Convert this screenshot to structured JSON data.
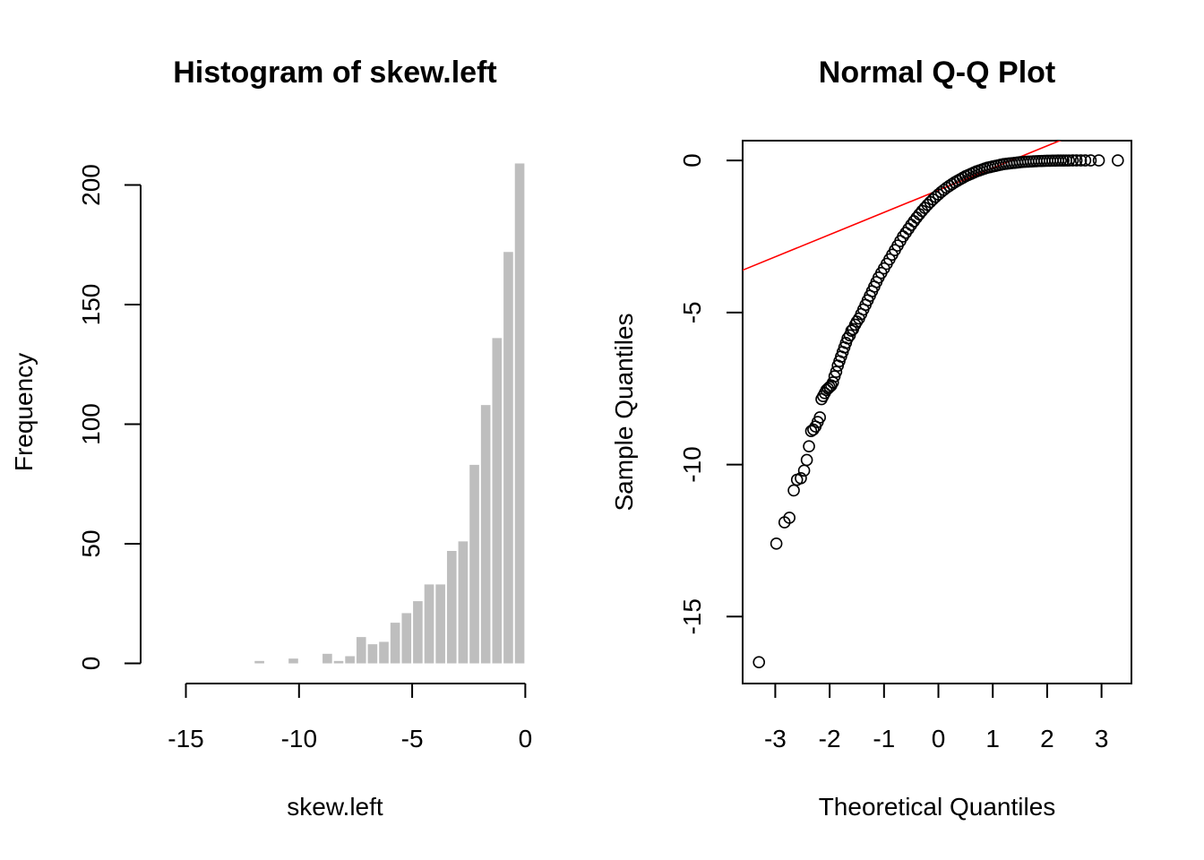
{
  "chart_data": [
    {
      "type": "bar",
      "title": "Histogram of skew.left",
      "xlabel": "skew.left",
      "ylabel": "Frequency",
      "xlim": [
        -17,
        0.5
      ],
      "ylim": [
        0,
        210
      ],
      "x_ticks": [
        -15,
        -10,
        -5,
        0
      ],
      "y_ticks": [
        0,
        50,
        100,
        150,
        200
      ],
      "bar_color": "#bebebe",
      "bin_width": 0.5,
      "bins": [
        {
          "x0": -12.0,
          "x1": -11.5,
          "value": 1
        },
        {
          "x0": -10.5,
          "x1": -10.0,
          "value": 2
        },
        {
          "x0": -9.0,
          "x1": -8.5,
          "value": 4
        },
        {
          "x0": -8.5,
          "x1": -8.0,
          "value": 1
        },
        {
          "x0": -8.0,
          "x1": -7.5,
          "value": 3
        },
        {
          "x0": -7.5,
          "x1": -7.0,
          "value": 11
        },
        {
          "x0": -7.0,
          "x1": -6.5,
          "value": 8
        },
        {
          "x0": -6.5,
          "x1": -6.0,
          "value": 9
        },
        {
          "x0": -6.0,
          "x1": -5.5,
          "value": 17
        },
        {
          "x0": -5.5,
          "x1": -5.0,
          "value": 21
        },
        {
          "x0": -5.0,
          "x1": -4.5,
          "value": 26
        },
        {
          "x0": -4.5,
          "x1": -4.0,
          "value": 33
        },
        {
          "x0": -4.0,
          "x1": -3.5,
          "value": 33
        },
        {
          "x0": -3.5,
          "x1": -3.0,
          "value": 47
        },
        {
          "x0": -3.0,
          "x1": -2.5,
          "value": 51
        },
        {
          "x0": -2.5,
          "x1": -2.0,
          "value": 83
        },
        {
          "x0": -2.0,
          "x1": -1.5,
          "value": 108
        },
        {
          "x0": -1.5,
          "x1": -1.0,
          "value": 136
        },
        {
          "x0": -1.0,
          "x1": -0.5,
          "value": 172
        },
        {
          "x0": -0.5,
          "x1": 0.0,
          "value": 209
        }
      ]
    },
    {
      "type": "scatter",
      "title": "Normal Q-Q Plot",
      "xlabel": "Theoretical Quantiles",
      "ylabel": "Sample Quantiles",
      "xlim": [
        -3.6,
        3.55
      ],
      "ylim": [
        -17.2,
        0.65
      ],
      "x_ticks": [
        -3,
        -2,
        -1,
        0,
        1,
        2,
        3
      ],
      "y_ticks": [
        0,
        -5,
        -10,
        -15
      ],
      "point_color": "#000000",
      "line_color": "#ff0000",
      "reference_line": {
        "intercept": -0.98,
        "slope": 0.73
      },
      "points": [
        [
          -3.3,
          -16.5
        ],
        [
          -2.98,
          -12.6
        ],
        [
          -2.83,
          -11.9
        ],
        [
          -2.74,
          -11.75
        ],
        [
          -2.66,
          -10.85
        ],
        [
          -2.6,
          -10.5
        ],
        [
          -2.53,
          -10.45
        ],
        [
          -2.47,
          -10.2
        ],
        [
          -2.42,
          -9.85
        ],
        [
          -2.38,
          -9.4
        ],
        [
          -2.34,
          -8.9
        ],
        [
          -2.3,
          -8.85
        ],
        [
          -2.26,
          -8.75
        ],
        [
          -2.22,
          -8.6
        ],
        [
          -2.18,
          -8.45
        ],
        [
          -2.15,
          -7.85
        ],
        [
          -2.12,
          -7.75
        ],
        [
          -2.09,
          -7.65
        ],
        [
          -2.06,
          -7.55
        ],
        [
          -2.03,
          -7.5
        ],
        [
          -2.0,
          -7.45
        ],
        [
          -1.97,
          -7.4
        ],
        [
          -1.94,
          -7.3
        ],
        [
          -1.91,
          -7.1
        ],
        [
          -1.88,
          -6.95
        ],
        [
          -1.85,
          -6.75
        ],
        [
          -1.82,
          -6.6
        ],
        [
          -1.79,
          -6.45
        ],
        [
          -1.76,
          -6.3
        ],
        [
          -1.73,
          -6.15
        ],
        [
          -1.7,
          -6.0
        ],
        [
          -1.67,
          -5.85
        ],
        [
          -1.63,
          -5.75
        ],
        [
          -1.6,
          -5.6
        ],
        [
          -1.57,
          -5.55
        ],
        [
          -1.53,
          -5.4
        ],
        [
          -1.5,
          -5.3
        ],
        [
          -1.46,
          -5.2
        ],
        [
          -1.42,
          -5.05
        ],
        [
          -1.38,
          -4.9
        ],
        [
          -1.34,
          -4.75
        ],
        [
          -1.3,
          -4.6
        ],
        [
          -1.26,
          -4.45
        ],
        [
          -1.22,
          -4.3
        ],
        [
          -1.18,
          -4.15
        ],
        [
          -1.14,
          -4.0
        ],
        [
          -1.1,
          -3.85
        ],
        [
          -1.05,
          -3.7
        ],
        [
          -1.0,
          -3.55
        ],
        [
          -0.95,
          -3.4
        ],
        [
          -0.9,
          -3.25
        ],
        [
          -0.85,
          -3.1
        ],
        [
          -0.8,
          -2.95
        ],
        [
          -0.75,
          -2.8
        ],
        [
          -0.7,
          -2.65
        ],
        [
          -0.65,
          -2.5
        ],
        [
          -0.6,
          -2.38
        ],
        [
          -0.55,
          -2.25
        ],
        [
          -0.5,
          -2.12
        ],
        [
          -0.45,
          -2.0
        ],
        [
          -0.4,
          -1.88
        ],
        [
          -0.35,
          -1.77
        ],
        [
          -0.3,
          -1.66
        ],
        [
          -0.25,
          -1.56
        ],
        [
          -0.2,
          -1.46
        ],
        [
          -0.15,
          -1.37
        ],
        [
          -0.1,
          -1.28
        ],
        [
          -0.05,
          -1.2
        ],
        [
          0.0,
          -1.12
        ],
        [
          0.05,
          -1.04
        ],
        [
          0.1,
          -0.97
        ],
        [
          0.15,
          -0.9
        ],
        [
          0.2,
          -0.84
        ],
        [
          0.25,
          -0.78
        ],
        [
          0.3,
          -0.72
        ],
        [
          0.35,
          -0.67
        ],
        [
          0.4,
          -0.62
        ],
        [
          0.45,
          -0.57
        ],
        [
          0.5,
          -0.52
        ],
        [
          0.55,
          -0.48
        ],
        [
          0.6,
          -0.44
        ],
        [
          0.65,
          -0.4
        ],
        [
          0.7,
          -0.36
        ],
        [
          0.75,
          -0.33
        ],
        [
          0.8,
          -0.3
        ],
        [
          0.85,
          -0.27
        ],
        [
          0.9,
          -0.24
        ],
        [
          0.95,
          -0.22
        ],
        [
          1.0,
          -0.2
        ],
        [
          1.05,
          -0.18
        ],
        [
          1.1,
          -0.16
        ],
        [
          1.15,
          -0.14
        ],
        [
          1.2,
          -0.12
        ],
        [
          1.25,
          -0.11
        ],
        [
          1.3,
          -0.1
        ],
        [
          1.35,
          -0.09
        ],
        [
          1.4,
          -0.08
        ],
        [
          1.45,
          -0.07
        ],
        [
          1.5,
          -0.06
        ],
        [
          1.55,
          -0.05
        ],
        [
          1.6,
          -0.045
        ],
        [
          1.65,
          -0.04
        ],
        [
          1.7,
          -0.035
        ],
        [
          1.75,
          -0.03
        ],
        [
          1.8,
          -0.025
        ],
        [
          1.85,
          -0.02
        ],
        [
          1.9,
          -0.018
        ],
        [
          1.95,
          -0.015
        ],
        [
          2.0,
          -0.012
        ],
        [
          2.05,
          -0.01
        ],
        [
          2.1,
          -0.008
        ],
        [
          2.15,
          -0.006
        ],
        [
          2.2,
          -0.005
        ],
        [
          2.25,
          -0.004
        ],
        [
          2.3,
          -0.003
        ],
        [
          2.35,
          -0.002
        ],
        [
          2.4,
          -0.002
        ],
        [
          2.47,
          -0.001
        ],
        [
          2.54,
          -0.001
        ],
        [
          2.62,
          0.0
        ],
        [
          2.7,
          0.0
        ],
        [
          2.8,
          0.0
        ],
        [
          2.95,
          0.0
        ],
        [
          3.3,
          0.0
        ]
      ]
    }
  ]
}
